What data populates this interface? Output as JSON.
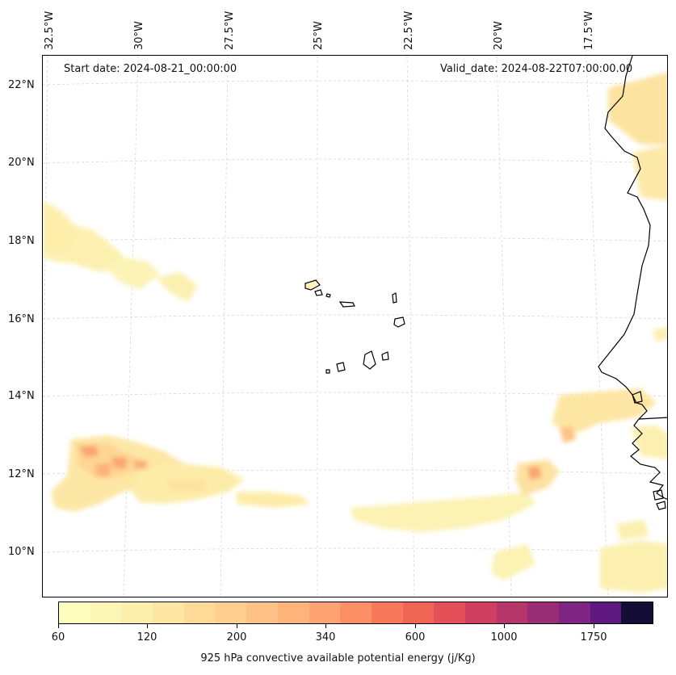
{
  "start_date": "Start date: 2024-08-21_00:00:00",
  "valid_date": "Valid_date: 2024-08-22T07:00:00.00",
  "longitude_labels": [
    "32.5°W",
    "30°W",
    "27.5°W",
    "25°W",
    "22.5°W",
    "20°W",
    "17.5°W"
  ],
  "latitude_labels": [
    "22°N",
    "20°N",
    "18°N",
    "16°N",
    "14°N",
    "12°N",
    "10°N"
  ],
  "colorbar": {
    "title": "925 hPa convective available potential energy (j/Kg)",
    "tick_labels": [
      "60",
      "120",
      "200",
      "340",
      "600",
      "1000",
      "1750"
    ],
    "colors": [
      "#fcfdbf",
      "#fcf6b6",
      "#fcefad",
      "#fde6a3",
      "#fdda98",
      "#fecf8e",
      "#fec286",
      "#feb37b",
      "#fea371",
      "#fc8f65",
      "#f8785c",
      "#ef6556",
      "#e35058",
      "#cf4060",
      "#b5366b",
      "#982c75",
      "#7e2482",
      "#5f187f",
      "#140e36"
    ],
    "scale": "discrete, non-linear"
  },
  "map": {
    "region": "Cabo Verde / West African coast",
    "coastline_color": "#000000",
    "grid": "dashed light gray"
  }
}
